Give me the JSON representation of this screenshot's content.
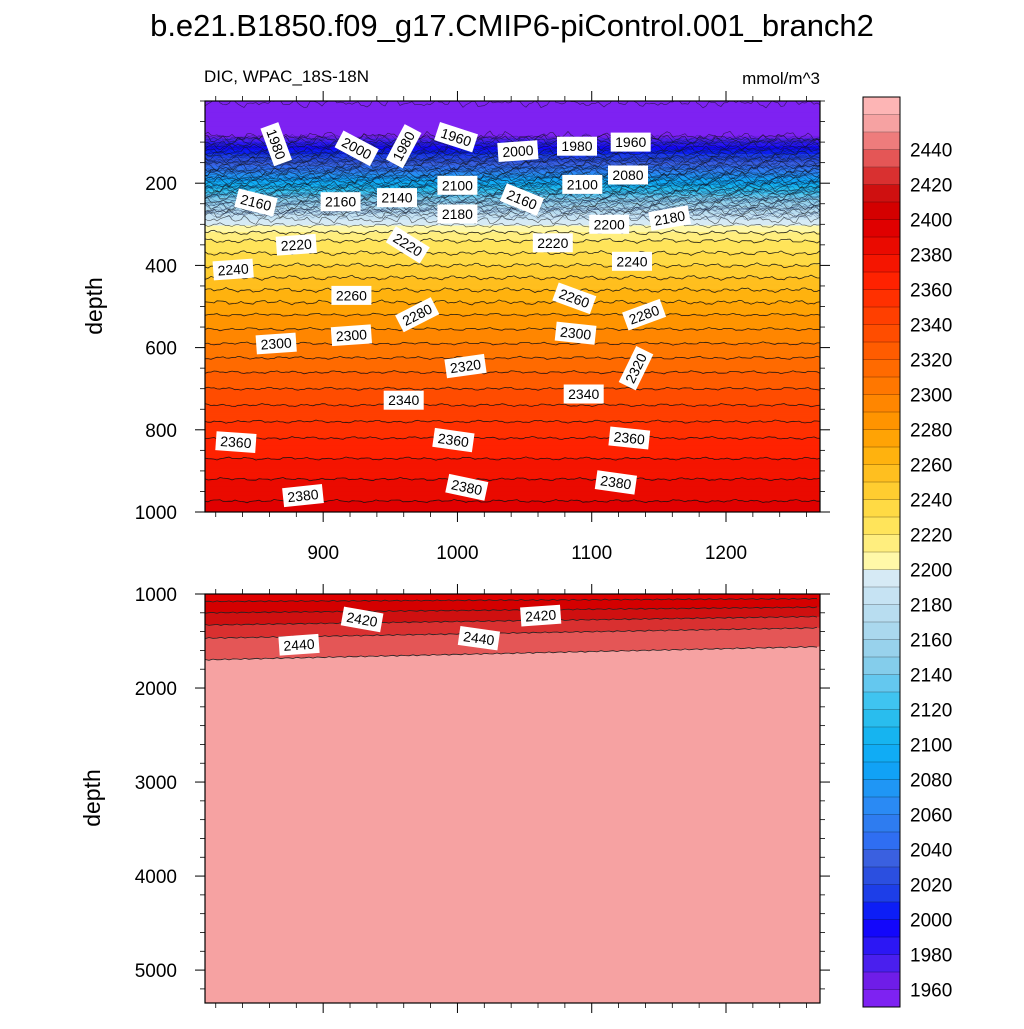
{
  "chart_data": {
    "type": "contour",
    "title": "b.e21.B1850.f09_g17.CMIP6-piControl.001_branch2",
    "variable_label": "DIC, WPAC_18S-18N",
    "units": "mmol/m^3",
    "xlim": [
      812,
      1270
    ],
    "xticks": [
      900,
      1000,
      1100,
      1200
    ],
    "xticks_top": [
      "900",
      "1000",
      "1100",
      "1200"
    ],
    "panels": [
      {
        "name": "upper",
        "ylabel": "depth",
        "ylim": [
          0,
          1000
        ],
        "ylim_plotted": [
          5,
          1000
        ],
        "yticks": [
          "200",
          "400",
          "600",
          "800",
          "1000"
        ],
        "yvals": [
          200,
          400,
          600,
          800,
          1000
        ],
        "profile": [
          [
            5,
            1950
          ],
          [
            60,
            1955
          ],
          [
            85,
            1960
          ],
          [
            95,
            1975
          ],
          [
            105,
            1985
          ],
          [
            120,
            2000
          ],
          [
            140,
            2020
          ],
          [
            165,
            2050
          ],
          [
            190,
            2085
          ],
          [
            215,
            2115
          ],
          [
            235,
            2140
          ],
          [
            255,
            2160
          ],
          [
            275,
            2180
          ],
          [
            295,
            2195
          ],
          [
            310,
            2205
          ],
          [
            340,
            2220
          ],
          [
            400,
            2240
          ],
          [
            460,
            2260
          ],
          [
            520,
            2280
          ],
          [
            590,
            2300
          ],
          [
            660,
            2320
          ],
          [
            740,
            2340
          ],
          [
            820,
            2360
          ],
          [
            920,
            2380
          ],
          [
            1000,
            2395
          ]
        ],
        "contour_labels": [
          {
            "value": "1980",
            "x": 865,
            "depth": 105,
            "rotation": 70
          },
          {
            "value": "2000",
            "x": 925,
            "depth": 115,
            "rotation": 28
          },
          {
            "value": "1980",
            "x": 960,
            "depth": 110,
            "rotation": -62
          },
          {
            "value": "1960",
            "x": 999,
            "depth": 88,
            "rotation": 18
          },
          {
            "value": "2000",
            "x": 1045,
            "depth": 122,
            "rotation": -4
          },
          {
            "value": "1980",
            "x": 1089,
            "depth": 110,
            "rotation": 0
          },
          {
            "value": "1960",
            "x": 1129,
            "depth": 100,
            "rotation": 0
          },
          {
            "value": "2080",
            "x": 1127,
            "depth": 180,
            "rotation": 0
          },
          {
            "value": "2160",
            "x": 850,
            "depth": 247,
            "rotation": 14
          },
          {
            "value": "2160",
            "x": 913,
            "depth": 245,
            "rotation": 0
          },
          {
            "value": "2140",
            "x": 955,
            "depth": 235,
            "rotation": 0
          },
          {
            "value": "2100",
            "x": 1000,
            "depth": 205,
            "rotation": 0
          },
          {
            "value": "2160",
            "x": 1048,
            "depth": 240,
            "rotation": 22
          },
          {
            "value": "2100",
            "x": 1093,
            "depth": 203,
            "rotation": 0
          },
          {
            "value": "2180",
            "x": 1000,
            "depth": 275,
            "rotation": 0
          },
          {
            "value": "2200",
            "x": 1113,
            "depth": 300,
            "rotation": 0
          },
          {
            "value": "2180",
            "x": 1158,
            "depth": 285,
            "rotation": -10
          },
          {
            "value": "2220",
            "x": 880,
            "depth": 350,
            "rotation": -4
          },
          {
            "value": "2220",
            "x": 963,
            "depth": 350,
            "rotation": 32
          },
          {
            "value": "2220",
            "x": 1071,
            "depth": 345,
            "rotation": 0
          },
          {
            "value": "2240",
            "x": 833,
            "depth": 410,
            "rotation": -4
          },
          {
            "value": "2240",
            "x": 1130,
            "depth": 390,
            "rotation": 0
          },
          {
            "value": "2260",
            "x": 921,
            "depth": 473,
            "rotation": 0
          },
          {
            "value": "2260",
            "x": 1087,
            "depth": 480,
            "rotation": 20
          },
          {
            "value": "2280",
            "x": 970,
            "depth": 520,
            "rotation": -27
          },
          {
            "value": "2280",
            "x": 1139,
            "depth": 520,
            "rotation": -20
          },
          {
            "value": "2300",
            "x": 865,
            "depth": 590,
            "rotation": -4
          },
          {
            "value": "2300",
            "x": 921,
            "depth": 570,
            "rotation": -4
          },
          {
            "value": "2300",
            "x": 1088,
            "depth": 565,
            "rotation": 6
          },
          {
            "value": "2320",
            "x": 1006,
            "depth": 645,
            "rotation": -8
          },
          {
            "value": "2320",
            "x": 1133,
            "depth": 650,
            "rotation": -64
          },
          {
            "value": "2340",
            "x": 960,
            "depth": 728,
            "rotation": 0
          },
          {
            "value": "2340",
            "x": 1094,
            "depth": 713,
            "rotation": 0
          },
          {
            "value": "2360",
            "x": 835,
            "depth": 830,
            "rotation": 4
          },
          {
            "value": "2360",
            "x": 997,
            "depth": 825,
            "rotation": 8
          },
          {
            "value": "2360",
            "x": 1128,
            "depth": 820,
            "rotation": 6
          },
          {
            "value": "2380",
            "x": 885,
            "depth": 960,
            "rotation": -6
          },
          {
            "value": "2380",
            "x": 1007,
            "depth": 940,
            "rotation": 12
          },
          {
            "value": "2380",
            "x": 1118,
            "depth": 928,
            "rotation": 8
          }
        ]
      },
      {
        "name": "lower",
        "ylabel": "depth",
        "ylim": [
          1000,
          5350
        ],
        "yticks": [
          "1000",
          "2000",
          "3000",
          "4000",
          "5000"
        ],
        "yvals": [
          1000,
          2000,
          3000,
          4000,
          5000
        ],
        "contour_lines": [
          {
            "value": 2400,
            "depth_left": 1080,
            "depth_right": 1050
          },
          {
            "value": 2410,
            "depth_left": 1200,
            "depth_right": 1140
          },
          {
            "value": 2420,
            "depth_left": 1330,
            "depth_right": 1240
          },
          {
            "value": 2430,
            "depth_left": 1470,
            "depth_right": 1360
          },
          {
            "value": 2440,
            "depth_left": 1700,
            "depth_right": 1560
          }
        ],
        "contour_labels": [
          {
            "value": "2420",
            "x": 929,
            "depth": 1270,
            "rotation": 10
          },
          {
            "value": "2420",
            "x": 1062,
            "depth": 1230,
            "rotation": -4
          },
          {
            "value": "2440",
            "x": 882,
            "depth": 1540,
            "rotation": -4
          },
          {
            "value": "2440",
            "x": 1016,
            "depth": 1470,
            "rotation": 8
          }
        ]
      }
    ],
    "colorbar": {
      "levels": [
        1950,
        1960,
        1970,
        1980,
        1990,
        2000,
        2010,
        2020,
        2030,
        2040,
        2050,
        2060,
        2070,
        2080,
        2090,
        2100,
        2110,
        2120,
        2130,
        2140,
        2150,
        2160,
        2170,
        2180,
        2190,
        2200,
        2210,
        2220,
        2230,
        2240,
        2250,
        2260,
        2270,
        2280,
        2290,
        2300,
        2310,
        2320,
        2330,
        2340,
        2350,
        2360,
        2370,
        2380,
        2390,
        2400,
        2410,
        2420,
        2430,
        2440,
        2450,
        2460
      ],
      "colors": [
        "#7e22f2",
        "#6f1de8",
        "#4a1fee",
        "#2c17f4",
        "#1307fb",
        "#0d1ef6",
        "#1d3ee8",
        "#2b4fe0",
        "#3a60e0",
        "#2f6ef2",
        "#2e7cf0",
        "#2a8af4",
        "#1f96f5",
        "#11a2f6",
        "#10acf5",
        "#16b4f0",
        "#29bdee",
        "#3fc4f0",
        "#64c8ef",
        "#84cdeb",
        "#98d2ec",
        "#aad8ee",
        "#b8ddf0",
        "#c6e3f3",
        "#d6eaf5",
        "#fff8a8",
        "#ffee7e",
        "#ffe45a",
        "#ffda44",
        "#ffcd30",
        "#ffbf1f",
        "#ffb20e",
        "#ffa305",
        "#ff9400",
        "#ff8600",
        "#ff7700",
        "#ff6a00",
        "#ff5c00",
        "#ff4d00",
        "#ff3f00",
        "#ff3000",
        "#ff2200",
        "#f51500",
        "#ea0a00",
        "#e00000",
        "#d40000",
        "#cf1010",
        "#d93030",
        "#e45656",
        "#ee7c7c",
        "#f6a2a2",
        "#fdb5b5"
      ],
      "tick_labels": [
        "1960",
        "1980",
        "2000",
        "2020",
        "2040",
        "2060",
        "2080",
        "2100",
        "2120",
        "2140",
        "2160",
        "2180",
        "2200",
        "2220",
        "2240",
        "2260",
        "2280",
        "2300",
        "2320",
        "2340",
        "2360",
        "2380",
        "2400",
        "2420",
        "2440"
      ]
    }
  }
}
